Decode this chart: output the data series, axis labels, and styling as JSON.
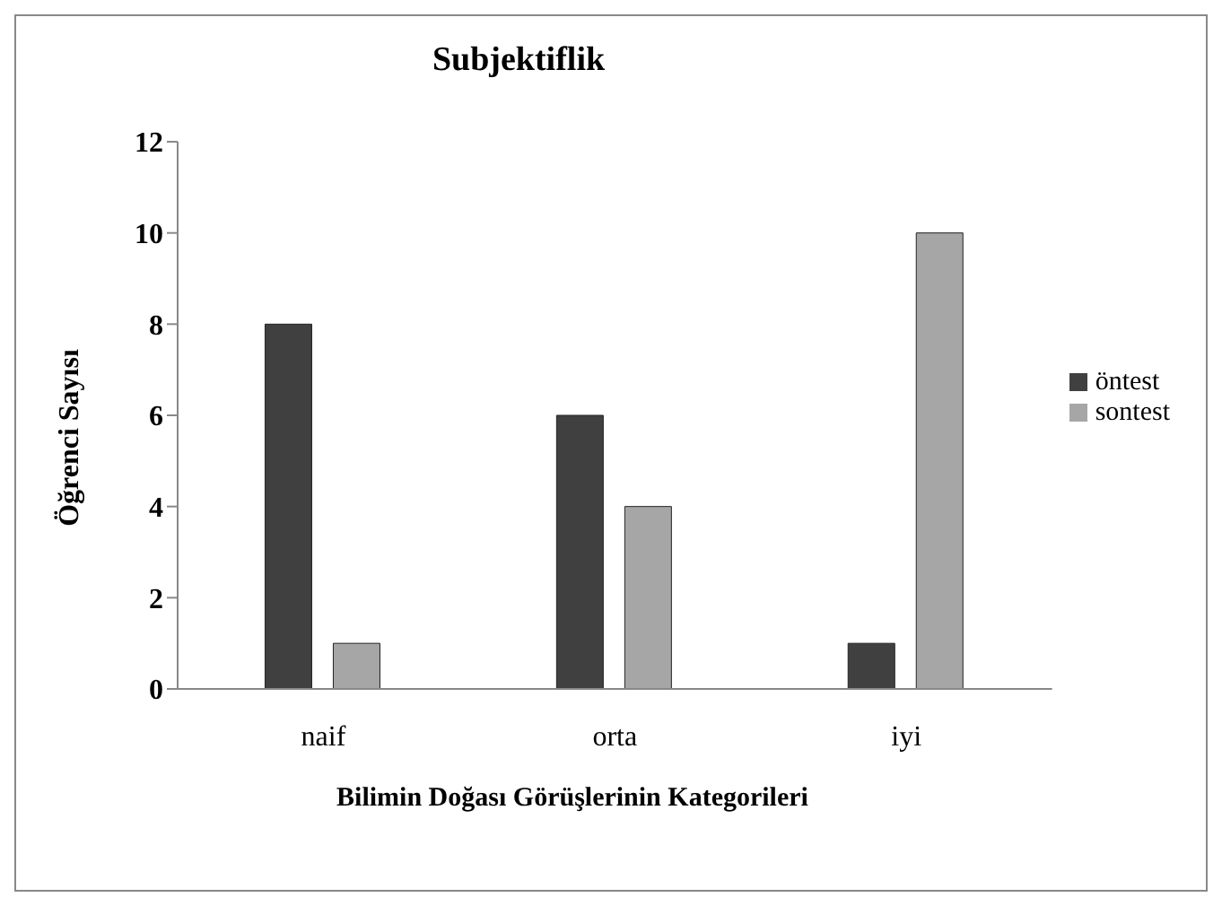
{
  "chart_data": {
    "type": "bar",
    "title": "Subjektiflik",
    "xlabel": "Bilimin Doğası Görüşlerinin Kategorileri",
    "ylabel": "Öğrenci Sayısı",
    "categories": [
      "naif",
      "orta",
      "iyi"
    ],
    "series": [
      {
        "name": "öntest",
        "color": "#404040",
        "values": [
          8,
          6,
          1
        ]
      },
      {
        "name": "sontest",
        "color": "#a6a6a6",
        "values": [
          1,
          4,
          10
        ]
      }
    ],
    "ylim": [
      0,
      12
    ],
    "yticks": [
      0,
      2,
      4,
      6,
      8,
      10,
      12
    ],
    "grid": false,
    "legend": "right"
  }
}
